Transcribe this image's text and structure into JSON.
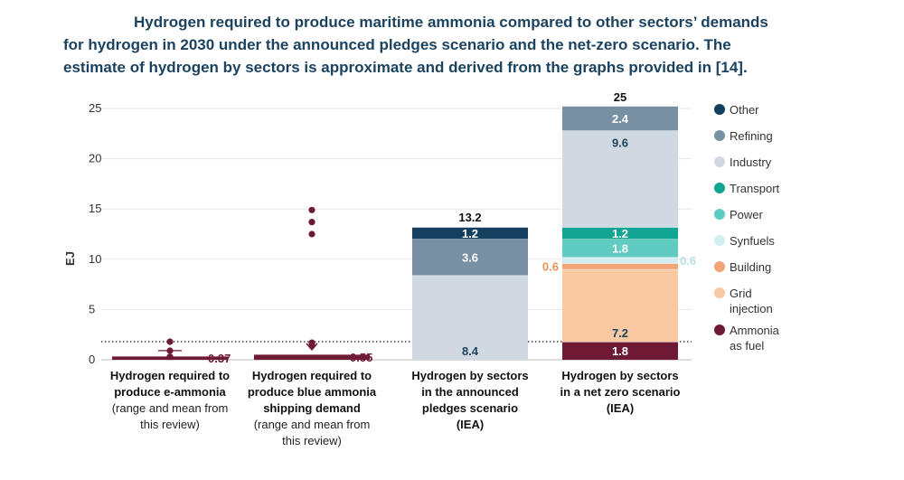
{
  "title": {
    "line1": "Hydrogen required to produce maritime ammonia compared to other sectors’ demands",
    "line2": "for hydrogen in 2030 under the announced pledges scenario and the net-zero scenario. The",
    "line3": "estimate of hydrogen by sectors is approximate and derived from the graphs provided in [14]."
  },
  "chart_data": {
    "type": "bar",
    "stacked": true,
    "ylabel": "EJ",
    "ylim": [
      0,
      25
    ],
    "yticks": [
      0,
      5,
      10,
      15,
      20,
      25
    ],
    "grid": true,
    "legend_position": "right",
    "categories": [
      {
        "lines_bold": [
          "Hydrogen required to",
          "produce e-ammonia"
        ],
        "lines_normal": [
          "(range and mean from",
          "this review)"
        ]
      },
      {
        "lines_bold": [
          "Hydrogen required to",
          "produce blue ammonia",
          "shipping demand"
        ],
        "lines_normal": [
          "(range and mean from",
          "this review)"
        ]
      },
      {
        "lines_bold": [
          "Hydrogen by sectors",
          "in the announced",
          "pledges scenario",
          "(IEA)"
        ],
        "lines_normal": []
      },
      {
        "lines_bold": [
          "Hydrogen by sectors",
          "in a net zero scenario",
          "(IEA)"
        ],
        "lines_normal": []
      }
    ],
    "series": [
      {
        "name": "Ammonia as fuel",
        "legend_lines": [
          "Ammonia",
          "as fuel"
        ],
        "color": "#6e1a35",
        "values": [
          0.37,
          0.55,
          0,
          1.8
        ]
      },
      {
        "name": "Grid injection",
        "legend_lines": [
          "Grid",
          "injection"
        ],
        "color": "#f9c9a1",
        "values": [
          0,
          0,
          0,
          7.2
        ]
      },
      {
        "name": "Building",
        "legend_lines": [
          "Building"
        ],
        "color": "#f2a576",
        "values": [
          0,
          0,
          0,
          0.6
        ]
      },
      {
        "name": "Synfuels",
        "legend_lines": [
          "Synfuels"
        ],
        "color": "#d3eef0",
        "values": [
          0,
          0,
          0,
          0.6
        ]
      },
      {
        "name": "Power",
        "legend_lines": [
          "Power"
        ],
        "color": "#5fcbc1",
        "values": [
          0,
          0,
          0,
          1.8
        ]
      },
      {
        "name": "Transport",
        "legend_lines": [
          "Transport"
        ],
        "color": "#13a594",
        "values": [
          0,
          0,
          0,
          1.2
        ]
      },
      {
        "name": "Industry",
        "legend_lines": [
          "Industry"
        ],
        "color": "#d0d9e1",
        "values": [
          0,
          0,
          8.4,
          9.6
        ]
      },
      {
        "name": "Refining",
        "legend_lines": [
          "Refining"
        ],
        "color": "#7791a3",
        "values": [
          0,
          0,
          3.6,
          2.4
        ]
      },
      {
        "name": "Other",
        "legend_lines": [
          "Other"
        ],
        "color": "#143f5e",
        "values": [
          0,
          0,
          1.2,
          0
        ]
      }
    ],
    "totals": [
      null,
      null,
      "13.2",
      "25"
    ],
    "data_labels": [
      [
        {
          "series": "Ammonia as fuel",
          "text": "0.37",
          "side": "right"
        }
      ],
      [
        {
          "series": "Ammonia as fuel",
          "text": "0.55",
          "side": "right"
        }
      ],
      [
        {
          "series": "Industry",
          "text": "8.4",
          "pos": "bottom"
        },
        {
          "series": "Refining",
          "text": "3.6"
        },
        {
          "series": "Other",
          "text": "1.2"
        }
      ],
      [
        {
          "series": "Ammonia as fuel",
          "text": "1.8"
        },
        {
          "series": "Grid injection",
          "text": "7.2",
          "pos": "bottom"
        },
        {
          "series": "Building",
          "text": "0.6",
          "side": "left"
        },
        {
          "series": "Synfuels",
          "text": "0.6",
          "side": "right"
        },
        {
          "series": "Power",
          "text": "1.8"
        },
        {
          "series": "Transport",
          "text": "1.2"
        },
        {
          "series": "Industry",
          "text": "9.6",
          "pos": "top"
        },
        {
          "series": "Refining",
          "text": "2.4"
        }
      ]
    ],
    "scatter_points": [
      {
        "category": 0,
        "values": [
          1.8,
          0.9,
          0.3
        ]
      },
      {
        "category": 1,
        "values": [
          14.9,
          13.7,
          12.5,
          1.7,
          1.4
        ]
      }
    ],
    "reference_line": {
      "value": 1.8,
      "style": "dotted"
    }
  }
}
